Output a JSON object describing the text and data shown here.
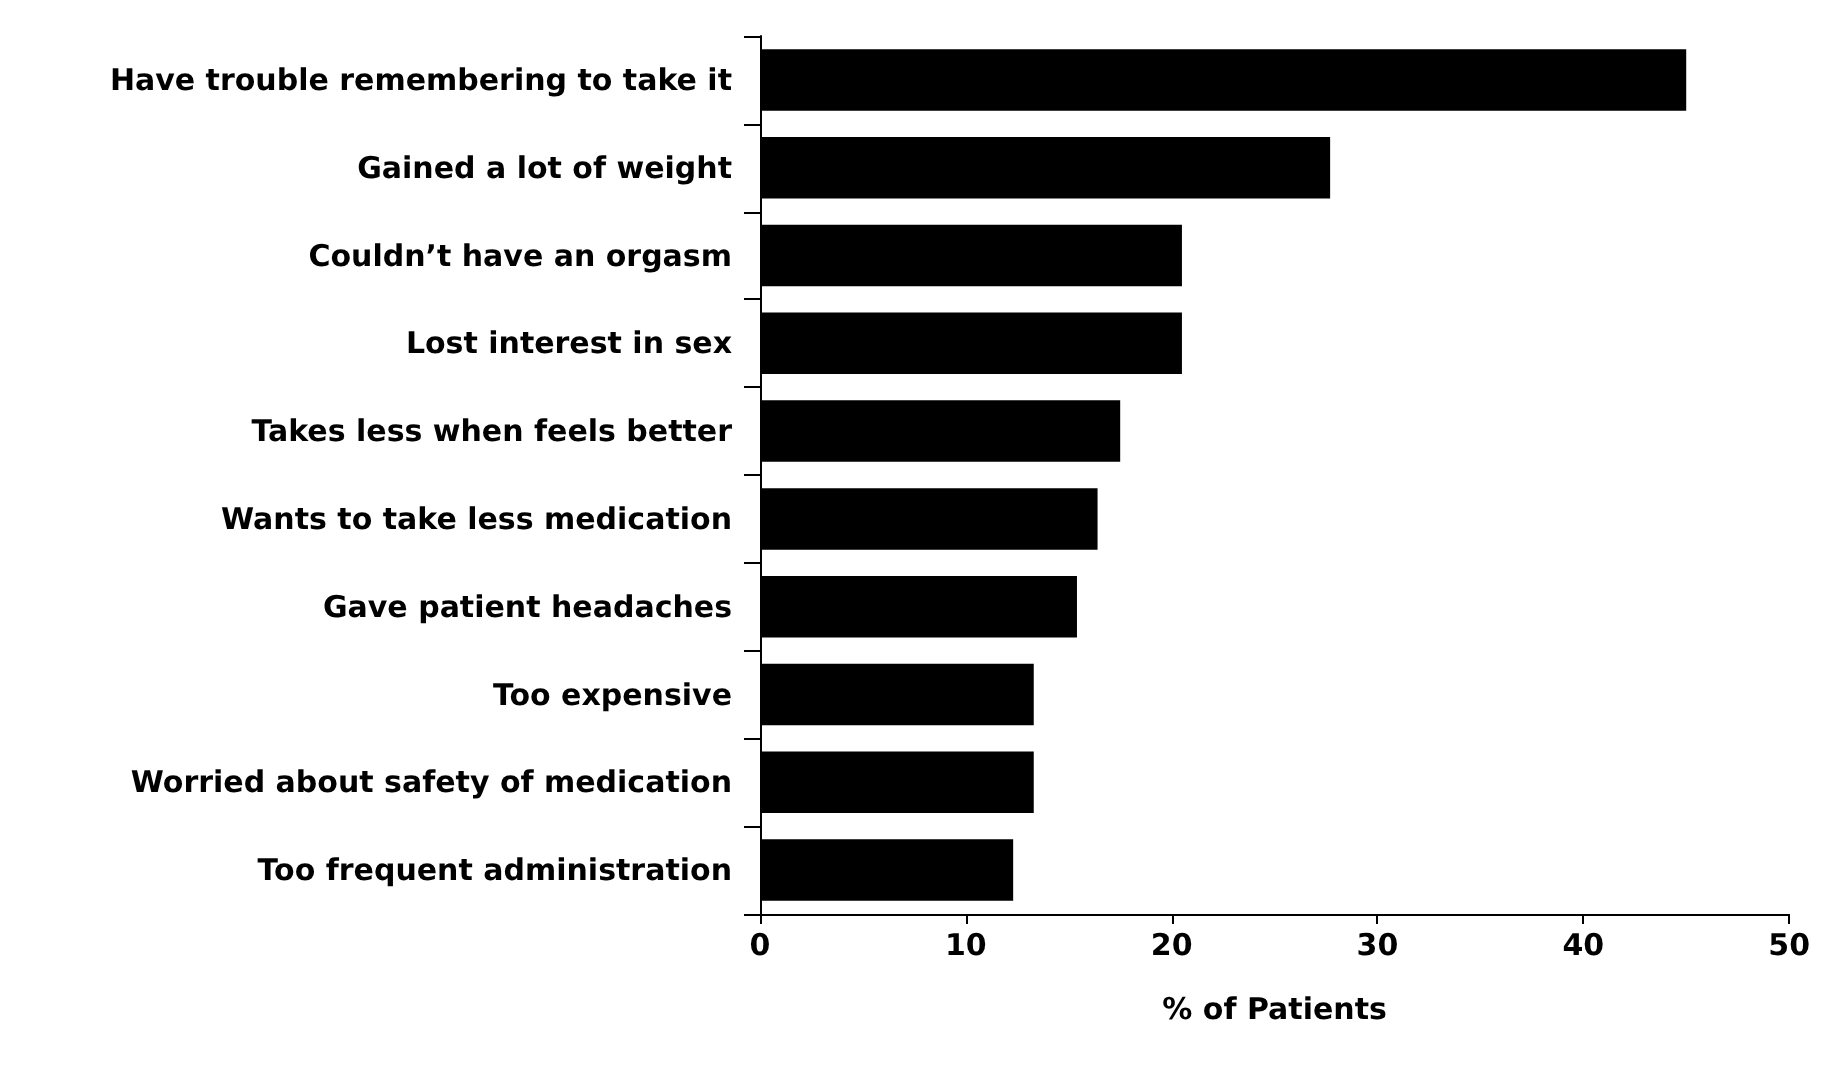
{
  "chart_data": {
    "type": "bar",
    "orientation": "horizontal",
    "xlabel": "% of Patients",
    "categories": [
      "Have trouble remembering to take it",
      "Gained a lot of weight",
      "Couldn’t have an orgasm",
      "Lost interest in sex",
      "Takes less when feels better",
      "Wants to take less medication",
      "Gave patient headaches",
      "Too expensive",
      "Worried about safety of medication",
      "Too frequent administration"
    ],
    "values": [
      45,
      27.7,
      20.5,
      20.5,
      17.5,
      16.4,
      15.4,
      13.3,
      13.3,
      12.3
    ],
    "color": "#000000",
    "xlim": [
      0,
      50
    ],
    "xticks": [
      0,
      10,
      20,
      30,
      40,
      50
    ],
    "grid": false
  }
}
